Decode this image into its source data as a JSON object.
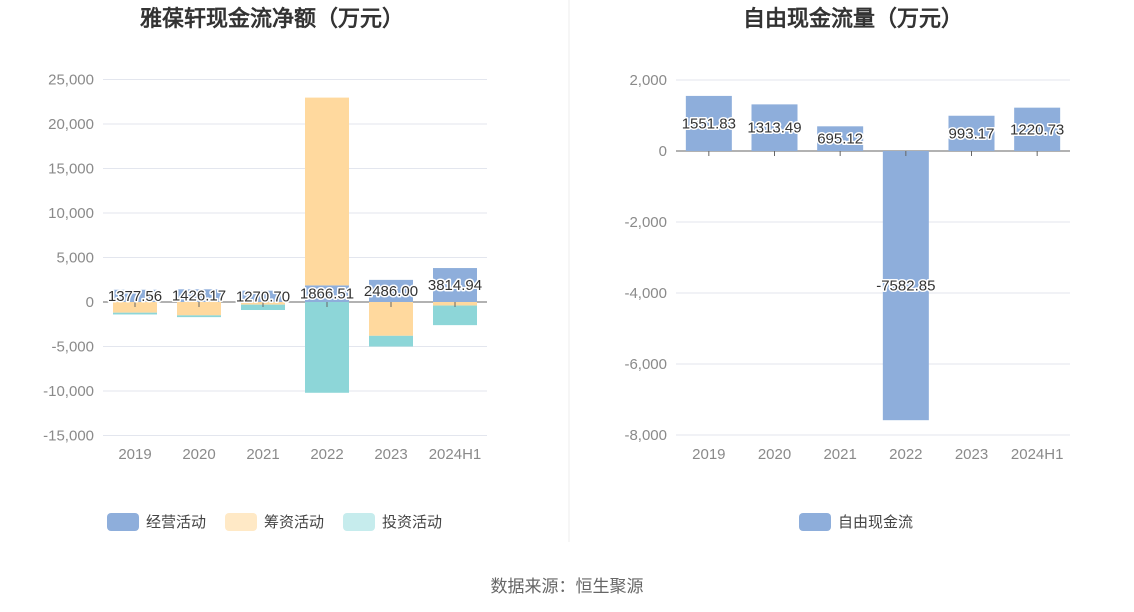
{
  "source": "数据来源：恒生聚源",
  "colors": {
    "operating": "#8eaedb",
    "financing": "#ffd99e",
    "investing": "#8dd6d8",
    "free_cash_flow": "#8eaedb",
    "legend_financing": "#ffe9c6",
    "legend_investing": "#c6eced"
  },
  "chart_data": [
    {
      "type": "bar",
      "title": "雅葆轩现金流净额（万元）",
      "categories": [
        "2019",
        "2020",
        "2021",
        "2022",
        "2023",
        "2024H1"
      ],
      "ylim": [
        -15000,
        25000
      ],
      "yticks": [
        "25,000",
        "20,000",
        "15,000",
        "10,000",
        "5,000",
        "0",
        "-5,000",
        "-10,000",
        "-15,000"
      ],
      "ytick_values": [
        25000,
        20000,
        15000,
        10000,
        5000,
        0,
        -5000,
        -10000,
        -15000
      ],
      "grid": true,
      "legend_position": "bottom",
      "series": [
        {
          "name": "经营活动",
          "values": [
            1377.56,
            1426.17,
            1270.7,
            1866.51,
            2486.0,
            3814.94
          ]
        },
        {
          "name": "筹资活动",
          "values": [
            -1200,
            -1500,
            -300,
            21100,
            -3800,
            -400
          ]
        },
        {
          "name": "投资活动",
          "values": [
            -200,
            -200,
            -600,
            -10200,
            -1200,
            -2200
          ]
        }
      ],
      "data_labels": [
        "1377.56",
        "1426.17",
        "1270.70",
        "1866.51",
        "2486.00",
        "3814.94"
      ]
    },
    {
      "type": "bar",
      "title": "自由现金流量（万元）",
      "categories": [
        "2019",
        "2020",
        "2021",
        "2022",
        "2023",
        "2024H1"
      ],
      "ylim": [
        -8000,
        2000
      ],
      "yticks": [
        "2,000",
        "0",
        "-2,000",
        "-4,000",
        "-6,000",
        "-8,000"
      ],
      "ytick_values": [
        2000,
        0,
        -2000,
        -4000,
        -6000,
        -8000
      ],
      "grid": true,
      "legend_position": "bottom",
      "series": [
        {
          "name": "自由现金流",
          "values": [
            1551.83,
            1313.49,
            695.12,
            -7582.85,
            993.17,
            1220.73
          ]
        }
      ],
      "data_labels": [
        "1551.83",
        "1313.49",
        "695.12",
        "-7582.85",
        "993.17",
        "1220.73"
      ]
    }
  ]
}
